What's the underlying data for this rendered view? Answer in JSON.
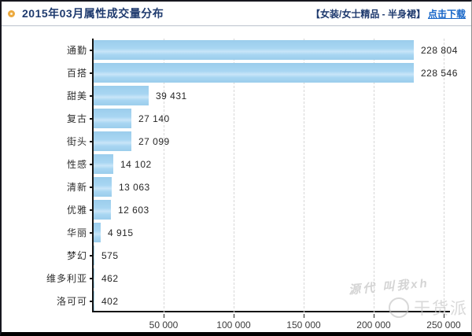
{
  "header": {
    "title": "2015年03月属性成交量分布",
    "category_tag": "【女装/女士精品 - 半身裙】",
    "download_link": "点击下载"
  },
  "chart_data": {
    "type": "bar",
    "orientation": "horizontal",
    "title": "2015年03月属性成交量分布",
    "categories": [
      "通勤",
      "百搭",
      "甜美",
      "复古",
      "街头",
      "性感",
      "清新",
      "优雅",
      "华丽",
      "梦幻",
      "维多利亚",
      "洛可可"
    ],
    "values": [
      228804,
      228546,
      39431,
      27140,
      27099,
      14102,
      13063,
      12603,
      4915,
      575,
      462,
      402
    ],
    "value_labels": [
      "228 804",
      "228 546",
      "39 431",
      "27 140",
      "27 099",
      "14 102",
      "13 063",
      "12 603",
      "4 915",
      "575",
      "462",
      "402"
    ],
    "xlim": [
      0,
      250000
    ],
    "x_ticks": [
      50000,
      100000,
      150000,
      200000,
      250000
    ],
    "x_tick_labels": [
      "50 000",
      "100 000",
      "150 000",
      "200 000",
      "250 000"
    ],
    "bar_color": "#a3d2ef",
    "axis_color": "#141414",
    "grid": "vertical-dashed"
  },
  "watermark": {
    "signature": "源代 叫我xh",
    "brand": "干货派"
  }
}
